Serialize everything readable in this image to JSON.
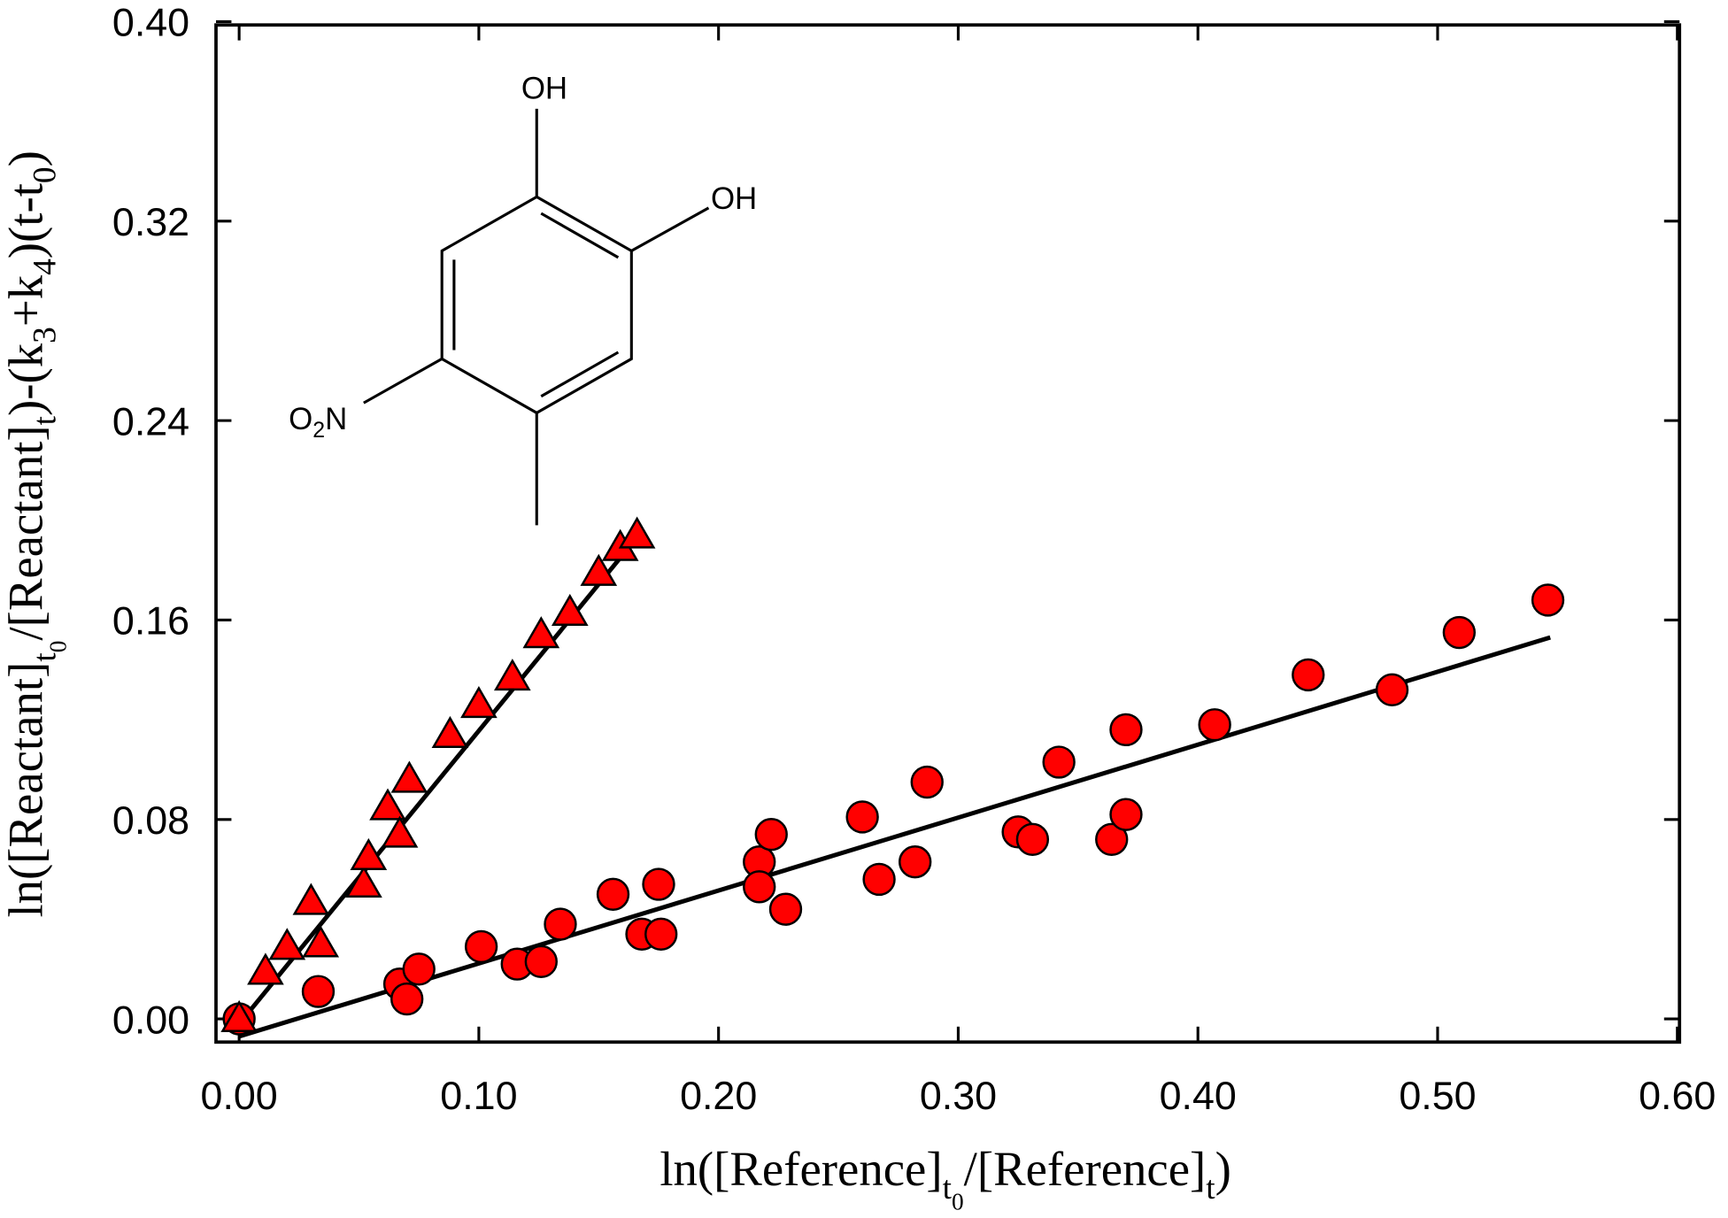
{
  "chart_data": {
    "type": "scatter",
    "title": "",
    "xlabel_parts": [
      {
        "t": "ln([Reference]",
        "sub": false
      },
      {
        "t": "t",
        "sub": true
      },
      {
        "t": "0",
        "subsub": true
      },
      {
        "t": "/[Reference]",
        "sub": false
      },
      {
        "t": "t",
        "sub": true
      },
      {
        "t": ")",
        "sub": false
      }
    ],
    "ylabel_parts": [
      {
        "t": "ln([Reactant]",
        "sub": false
      },
      {
        "t": "t",
        "sub": true
      },
      {
        "t": "0",
        "subsub": true
      },
      {
        "t": "/[Reactant]",
        "sub": false
      },
      {
        "t": "t",
        "sub": true
      },
      {
        "t": ")-(k",
        "sub": false
      },
      {
        "t": "3",
        "sub": true
      },
      {
        "t": "+k",
        "sub": false
      },
      {
        "t": "4",
        "sub": true
      },
      {
        "t": ")(t-t",
        "sub": false
      },
      {
        "t": "0",
        "sub": true
      },
      {
        "t": ")",
        "sub": false
      }
    ],
    "xlim": [
      -0.01,
      0.6
    ],
    "ylim": [
      -0.01,
      0.4
    ],
    "xticks": [
      "0.00",
      "0.10",
      "0.20",
      "0.30",
      "0.40",
      "0.50",
      "0.60"
    ],
    "yticks": [
      "0.00",
      "0.08",
      "0.16",
      "0.24",
      "0.32",
      "0.40"
    ],
    "grid": false,
    "marker_color": "#ff0000",
    "series": [
      {
        "name": "triangles",
        "marker": "triangle",
        "x": [
          0,
          0.011,
          0.02,
          0.03,
          0.034,
          0.052,
          0.054,
          0.062,
          0.067,
          0.071,
          0.088,
          0.1,
          0.114,
          0.126,
          0.138,
          0.15,
          0.159,
          0.166
        ],
        "y": [
          0.0,
          0.019,
          0.029,
          0.047,
          0.03,
          0.054,
          0.065,
          0.085,
          0.074,
          0.096,
          0.114,
          0.126,
          0.137,
          0.154,
          0.163,
          0.179,
          0.189,
          0.194
        ],
        "fit": {
          "x": [
            0,
            0.165
          ],
          "y": [
            -0.002,
            0.192
          ]
        }
      },
      {
        "name": "circles",
        "marker": "circle",
        "x": [
          0,
          0.033,
          0.067,
          0.07,
          0.075,
          0.101,
          0.116,
          0.126,
          0.134,
          0.156,
          0.168,
          0.175,
          0.176,
          0.217,
          0.217,
          0.222,
          0.228,
          0.26,
          0.267,
          0.282,
          0.287,
          0.325,
          0.331,
          0.342,
          0.364,
          0.37,
          0.37,
          0.407,
          0.446,
          0.481,
          0.509,
          0.546
        ],
        "y": [
          0.0,
          0.011,
          0.014,
          0.008,
          0.02,
          0.029,
          0.022,
          0.023,
          0.038,
          0.05,
          0.034,
          0.054,
          0.034,
          0.063,
          0.053,
          0.074,
          0.044,
          0.081,
          0.056,
          0.063,
          0.095,
          0.075,
          0.072,
          0.103,
          0.072,
          0.116,
          0.082,
          0.118,
          0.138,
          0.132,
          0.155,
          0.168
        ],
        "fit": {
          "x": [
            0,
            0.547
          ],
          "y": [
            -0.007,
            0.153
          ]
        }
      }
    ],
    "inset_structure": {
      "labels": {
        "oh_top": "OH",
        "oh_right": "OH",
        "o2n_o": "O",
        "o2n_sub": "2",
        "o2n_n": "N"
      }
    }
  }
}
